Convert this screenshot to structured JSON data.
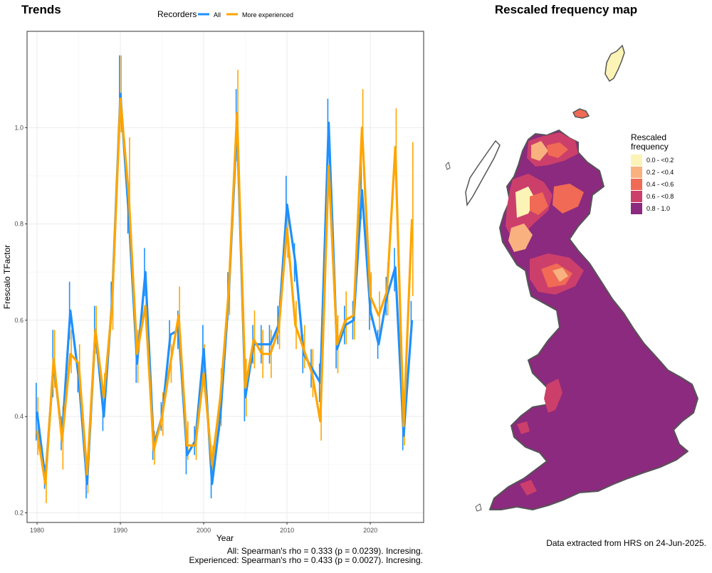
{
  "chart_data": [
    {
      "type": "line",
      "title": "Trends",
      "xlabel": "Year",
      "ylabel": "Frescalo TFactor",
      "xlim": [
        1978.8,
        2026.4
      ],
      "ylim": [
        0.18,
        1.2
      ],
      "xticks": [
        1980,
        1990,
        2000,
        2010,
        2020
      ],
      "yticks": [
        0.2,
        0.4,
        0.6,
        0.8,
        1.0
      ],
      "ytick_labels": [
        "0.2",
        "0.4",
        "0.6",
        "0.8",
        "1.0"
      ],
      "grid": true,
      "legend": {
        "title": "Recorders",
        "position": "top"
      },
      "series": [
        {
          "name": "All",
          "color": "#1e90ff",
          "x": [
            1980,
            1981,
            1982,
            1983,
            1984,
            1985,
            1986,
            1987,
            1988,
            1989,
            1990,
            1991,
            1992,
            1993,
            1994,
            1995,
            1996,
            1997,
            1998,
            1999,
            2000,
            2001,
            2002,
            2003,
            2004,
            2005,
            2006,
            2007,
            2008,
            2009,
            2010,
            2011,
            2012,
            2013,
            2014,
            2015,
            2016,
            2017,
            2018,
            2019,
            2020,
            2021,
            2022,
            2023,
            2024,
            2025
          ],
          "values": [
            0.41,
            0.27,
            0.51,
            0.36,
            0.62,
            0.48,
            0.26,
            0.58,
            0.4,
            0.64,
            1.07,
            0.82,
            0.51,
            0.7,
            0.34,
            0.4,
            0.57,
            0.58,
            0.32,
            0.35,
            0.54,
            0.26,
            0.4,
            0.65,
            1.01,
            0.44,
            0.55,
            0.55,
            0.55,
            0.59,
            0.84,
            0.72,
            0.53,
            0.5,
            0.47,
            1.01,
            0.54,
            0.59,
            0.6,
            0.87,
            0.62,
            0.55,
            0.65,
            0.71,
            0.36,
            0.6
          ],
          "err_low": [
            0.35,
            0.25,
            0.44,
            0.33,
            0.56,
            0.45,
            0.23,
            0.53,
            0.37,
            0.6,
            1.0,
            0.78,
            0.47,
            0.65,
            0.31,
            0.37,
            0.54,
            0.54,
            0.28,
            0.32,
            0.49,
            0.23,
            0.37,
            0.6,
            0.93,
            0.39,
            0.51,
            0.51,
            0.51,
            0.55,
            0.78,
            0.68,
            0.49,
            0.46,
            0.43,
            0.94,
            0.5,
            0.55,
            0.56,
            0.81,
            0.58,
            0.52,
            0.61,
            0.66,
            0.33,
            0.56
          ],
          "err_high": [
            0.47,
            0.3,
            0.58,
            0.4,
            0.68,
            0.51,
            0.29,
            0.63,
            0.44,
            0.68,
            1.15,
            0.86,
            0.55,
            0.75,
            0.37,
            0.43,
            0.6,
            0.62,
            0.36,
            0.38,
            0.59,
            0.29,
            0.43,
            0.7,
            1.08,
            0.48,
            0.59,
            0.59,
            0.59,
            0.63,
            0.9,
            0.76,
            0.57,
            0.54,
            0.51,
            1.06,
            0.58,
            0.63,
            0.64,
            0.93,
            0.66,
            0.58,
            0.69,
            0.75,
            0.39,
            0.64
          ]
        },
        {
          "name": "More experienced",
          "color": "#ffa500",
          "x": [
            1980,
            1981,
            1982,
            1983,
            1984,
            1985,
            1986,
            1987,
            1988,
            1989,
            1990,
            1991,
            1992,
            1993,
            1994,
            1995,
            1996,
            1997,
            1998,
            1999,
            2000,
            2001,
            2002,
            2003,
            2004,
            2005,
            2006,
            2007,
            2008,
            2009,
            2010,
            2011,
            2012,
            2013,
            2014,
            2015,
            2016,
            2017,
            2018,
            2019,
            2020,
            2021,
            2022,
            2023,
            2024,
            2025
          ],
          "values": [
            0.37,
            0.26,
            0.52,
            0.35,
            0.53,
            0.51,
            0.28,
            0.58,
            0.44,
            0.63,
            1.06,
            0.86,
            0.53,
            0.63,
            0.33,
            0.4,
            0.51,
            0.61,
            0.34,
            0.34,
            0.49,
            0.3,
            0.44,
            0.66,
            1.03,
            0.46,
            0.56,
            0.53,
            0.53,
            0.58,
            0.79,
            0.59,
            0.54,
            0.49,
            0.39,
            0.92,
            0.55,
            0.6,
            0.61,
            1.0,
            0.65,
            0.61,
            0.66,
            0.96,
            0.38,
            0.81
          ],
          "err_low": [
            0.32,
            0.22,
            0.46,
            0.29,
            0.49,
            0.47,
            0.24,
            0.53,
            0.4,
            0.58,
            0.99,
            0.81,
            0.47,
            0.58,
            0.3,
            0.36,
            0.47,
            0.55,
            0.31,
            0.31,
            0.45,
            0.27,
            0.38,
            0.61,
            0.93,
            0.4,
            0.5,
            0.48,
            0.48,
            0.54,
            0.73,
            0.54,
            0.5,
            0.44,
            0.35,
            0.86,
            0.49,
            0.55,
            0.56,
            0.93,
            0.6,
            0.56,
            0.61,
            0.89,
            0.34,
            0.65
          ],
          "err_high": [
            0.44,
            0.3,
            0.58,
            0.42,
            0.58,
            0.55,
            0.32,
            0.63,
            0.49,
            0.68,
            1.15,
            0.98,
            0.58,
            0.68,
            0.37,
            0.45,
            0.55,
            0.67,
            0.39,
            0.38,
            0.55,
            0.34,
            0.5,
            0.71,
            1.12,
            0.52,
            0.62,
            0.58,
            0.58,
            0.63,
            0.84,
            0.64,
            0.59,
            0.54,
            0.44,
            0.98,
            0.61,
            0.66,
            0.67,
            1.08,
            0.7,
            0.66,
            0.72,
            1.04,
            0.43,
            0.97
          ]
        }
      ],
      "annotations": [
        "All: Spearman's rho = 0.333 (p = 0.0239). Incresing.",
        "Experienced: Spearman's rho = 0.433 (p = 0.0027). Incresing."
      ]
    },
    {
      "type": "map",
      "title": "Rescaled frequency map",
      "legend": {
        "title_line1": "Rescaled",
        "title_line2": "frequency",
        "position": "right",
        "entries": [
          {
            "label": "0.0 - <0.2",
            "color": "#fcf4b6"
          },
          {
            "label": "0.2 - <0.4",
            "color": "#f9b27f"
          },
          {
            "label": "0.4 - <0.6",
            "color": "#f06a55"
          },
          {
            "label": "0.6 - <0.8",
            "color": "#cc3f6b"
          },
          {
            "label": "0.8 - 1.0",
            "color": "#8b2a7e"
          }
        ]
      },
      "outline_color": "#555555",
      "note": "Data extracted from HRS on 24-Jun-2025."
    }
  ]
}
